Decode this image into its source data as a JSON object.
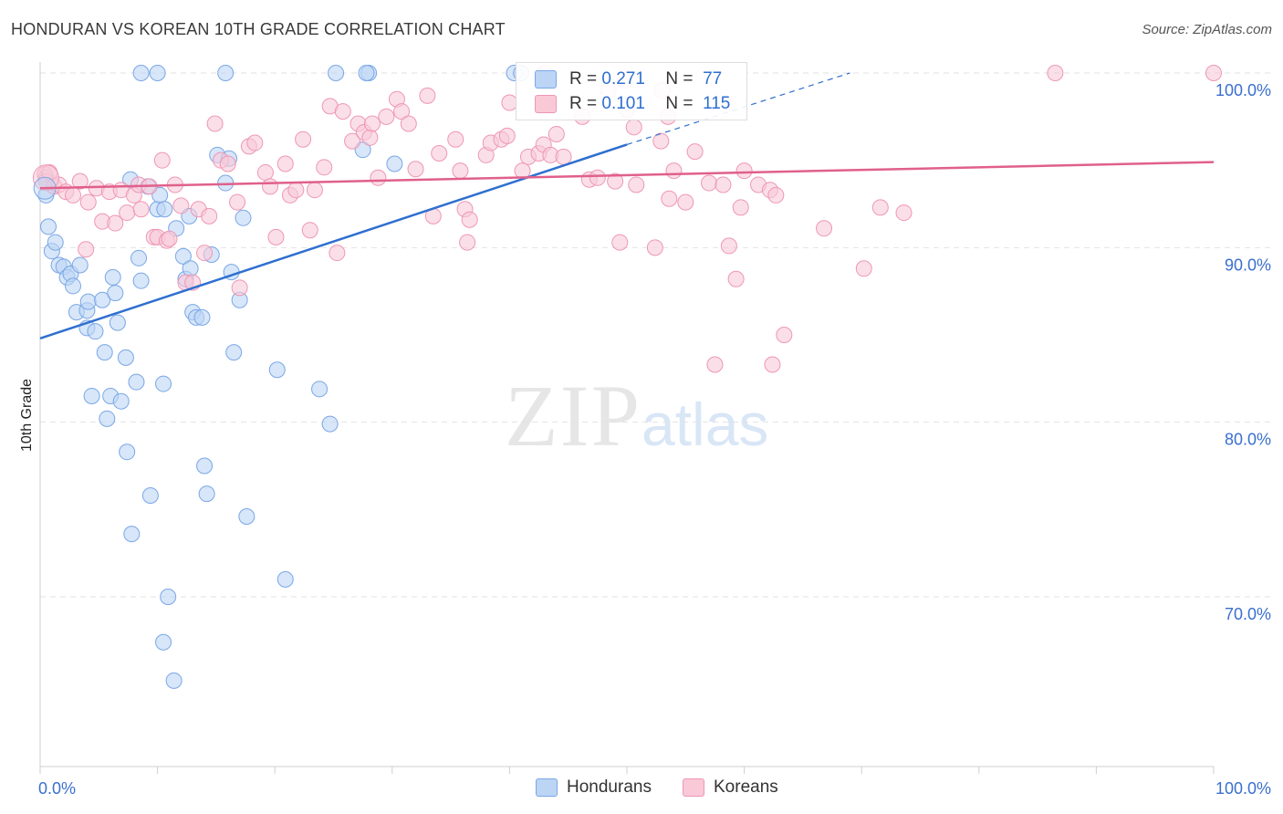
{
  "title": "HONDURAN VS KOREAN 10TH GRADE CORRELATION CHART",
  "source": "Source: ZipAtlas.com",
  "watermark": {
    "zip": "ZIP",
    "atlas": "atlas"
  },
  "legend_top": {
    "r_label": "R =",
    "n_label": "N =",
    "rows": [
      {
        "r": "0.271",
        "n": "77"
      },
      {
        "r": "0.101",
        "n": "115"
      }
    ]
  },
  "legend_bottom": [
    "Hondurans",
    "Koreans"
  ],
  "colors": {
    "blue": "#2f6fd0",
    "pink": "#e0608a",
    "blue_fill": "#bcd5f5",
    "pink_fill": "#f9c9d8"
  },
  "chart_data": {
    "type": "scatter",
    "title": "HONDURAN VS KOREAN 10TH GRADE CORRELATION CHART",
    "xlabel": "",
    "ylabel": "10th Grade",
    "xlim": [
      0,
      100
    ],
    "ylim": [
      60.5,
      101
    ],
    "x_tick_labels": [
      "0.0%",
      "100.0%"
    ],
    "y_ticks": [
      70,
      80,
      90,
      100
    ],
    "y_tick_labels": [
      "70.0%",
      "80.0%",
      "90.0%",
      "100.0%"
    ],
    "grid": true,
    "legend": "top-center",
    "series": [
      {
        "name": "Hondurans",
        "color": "#2f6fd0",
        "trend": {
          "x0": 0,
          "y0": 84.8,
          "x1": 50,
          "y1": 95.9,
          "dashed_to_x": 69,
          "dashed_to_y": 100
        },
        "points": [
          [
            0.5,
            94
          ],
          [
            0.5,
            93
          ],
          [
            0.7,
            91.2
          ],
          [
            1,
            89.8
          ],
          [
            1.3,
            90.3
          ],
          [
            1.6,
            89
          ],
          [
            2,
            88.9
          ],
          [
            2.3,
            88.3
          ],
          [
            2.6,
            88.5
          ],
          [
            2.8,
            87.8
          ],
          [
            3.4,
            89
          ],
          [
            3.1,
            86.3
          ],
          [
            4,
            86.4
          ],
          [
            4,
            85.4
          ],
          [
            4.1,
            86.9
          ],
          [
            4.7,
            85.2
          ],
          [
            5.3,
            87
          ],
          [
            5.5,
            84
          ],
          [
            6.2,
            88.3
          ],
          [
            6.4,
            87.4
          ],
          [
            6.6,
            85.7
          ],
          [
            7.3,
            83.7
          ],
          [
            7.7,
            93.9
          ],
          [
            8.2,
            82.3
          ],
          [
            8.4,
            89.4
          ],
          [
            8.6,
            88.1
          ],
          [
            9.2,
            93.5
          ],
          [
            10,
            92.2
          ],
          [
            10.2,
            93
          ],
          [
            10.6,
            92.2
          ],
          [
            10.5,
            82.2
          ],
          [
            11.6,
            91.1
          ],
          [
            12.2,
            89.5
          ],
          [
            12.4,
            88.2
          ],
          [
            12.7,
            91.8
          ],
          [
            12.8,
            88.8
          ],
          [
            13,
            86.3
          ],
          [
            13.3,
            86
          ],
          [
            13.8,
            86
          ],
          [
            14.6,
            89.6
          ],
          [
            15.1,
            95.3
          ],
          [
            15.8,
            93.7
          ],
          [
            16.1,
            95.1
          ],
          [
            16.3,
            88.6
          ],
          [
            16.5,
            84
          ],
          [
            17,
            87
          ],
          [
            17.3,
            91.7
          ],
          [
            4.4,
            81.5
          ],
          [
            5.7,
            80.2
          ],
          [
            6,
            81.5
          ],
          [
            6.9,
            81.2
          ],
          [
            7.4,
            78.3
          ],
          [
            7.8,
            73.6
          ],
          [
            9.4,
            75.8
          ],
          [
            10.9,
            70
          ],
          [
            10.5,
            67.4
          ],
          [
            11.4,
            65.2
          ],
          [
            14,
            77.5
          ],
          [
            14.2,
            75.9
          ],
          [
            17.6,
            74.6
          ],
          [
            20.2,
            83
          ],
          [
            20.9,
            71
          ],
          [
            23.8,
            81.9
          ],
          [
            24.7,
            79.9
          ],
          [
            27.5,
            95.6
          ],
          [
            30.2,
            94.8
          ],
          [
            8.6,
            100
          ],
          [
            10,
            100
          ],
          [
            15.8,
            100
          ],
          [
            25.2,
            100
          ],
          [
            28,
            100
          ],
          [
            40.4,
            100
          ],
          [
            41,
            100
          ],
          [
            27.8,
            100
          ]
        ]
      },
      {
        "name": "Koreans",
        "color": "#e0608a",
        "trend": {
          "x0": 0,
          "y0": 93.4,
          "x1": 100,
          "y1": 94.9
        },
        "points": [
          [
            0.4,
            94.2
          ],
          [
            0.5,
            93.8
          ],
          [
            0.8,
            94.3
          ],
          [
            1.2,
            93.5
          ],
          [
            1.6,
            93.6
          ],
          [
            2.2,
            93.2
          ],
          [
            2.8,
            93
          ],
          [
            3.4,
            93.8
          ],
          [
            3.9,
            89.9
          ],
          [
            4.1,
            92.6
          ],
          [
            4.8,
            93.4
          ],
          [
            5.3,
            91.5
          ],
          [
            5.9,
            93.2
          ],
          [
            6.4,
            91.4
          ],
          [
            6.9,
            93.3
          ],
          [
            7.4,
            92
          ],
          [
            8,
            93
          ],
          [
            8.4,
            93.6
          ],
          [
            8.6,
            92.2
          ],
          [
            9.3,
            93.5
          ],
          [
            9.7,
            90.6
          ],
          [
            10,
            90.6
          ],
          [
            10.4,
            95
          ],
          [
            10.8,
            90.4
          ],
          [
            11,
            90.5
          ],
          [
            11.5,
            93.6
          ],
          [
            12,
            92.4
          ],
          [
            12.4,
            88
          ],
          [
            13,
            88
          ],
          [
            13.5,
            92.2
          ],
          [
            14,
            89.7
          ],
          [
            14.4,
            91.8
          ],
          [
            14.9,
            97.1
          ],
          [
            15.4,
            95
          ],
          [
            16,
            94.8
          ],
          [
            16.8,
            92.6
          ],
          [
            17,
            87.7
          ],
          [
            17.8,
            95.8
          ],
          [
            18.3,
            96
          ],
          [
            19.2,
            94.3
          ],
          [
            19.6,
            93.5
          ],
          [
            20.1,
            90.6
          ],
          [
            20.9,
            94.8
          ],
          [
            21.3,
            93
          ],
          [
            21.8,
            93.3
          ],
          [
            22.4,
            96.2
          ],
          [
            23,
            91
          ],
          [
            23.4,
            93.3
          ],
          [
            24.2,
            94.6
          ],
          [
            24.7,
            98.1
          ],
          [
            25.3,
            89.7
          ],
          [
            25.8,
            97.8
          ],
          [
            26.6,
            96.1
          ],
          [
            27.1,
            97.1
          ],
          [
            27.6,
            96.6
          ],
          [
            28.1,
            96.3
          ],
          [
            28.3,
            97.1
          ],
          [
            28.8,
            94
          ],
          [
            29.5,
            97.5
          ],
          [
            30.4,
            98.5
          ],
          [
            30.8,
            97.8
          ],
          [
            31.4,
            97.1
          ],
          [
            32,
            94.5
          ],
          [
            33,
            98.7
          ],
          [
            33.5,
            91.8
          ],
          [
            34,
            95.4
          ],
          [
            35.4,
            96.2
          ],
          [
            35.8,
            94.4
          ],
          [
            36.2,
            92.2
          ],
          [
            36.6,
            91.6
          ],
          [
            36.4,
            90.3
          ],
          [
            38,
            95.3
          ],
          [
            38.4,
            96
          ],
          [
            39.3,
            96.2
          ],
          [
            39.8,
            96.4
          ],
          [
            40,
            98.3
          ],
          [
            41.1,
            94.4
          ],
          [
            41.6,
            95.2
          ],
          [
            42.5,
            95.4
          ],
          [
            42.9,
            95.9
          ],
          [
            43.5,
            95.3
          ],
          [
            44,
            96.5
          ],
          [
            44.6,
            95.2
          ],
          [
            46.2,
            97.5
          ],
          [
            46.8,
            93.9
          ],
          [
            47.5,
            94
          ],
          [
            48.4,
            99
          ],
          [
            49,
            93.8
          ],
          [
            49.4,
            90.3
          ],
          [
            50,
            97.9
          ],
          [
            50.6,
            96.9
          ],
          [
            50.8,
            93.6
          ],
          [
            52.4,
            90
          ],
          [
            52.9,
            96.1
          ],
          [
            53.5,
            97.5
          ],
          [
            53.6,
            92.8
          ],
          [
            54,
            94.4
          ],
          [
            55,
            92.6
          ],
          [
            55.8,
            95.5
          ],
          [
            57,
            93.7
          ],
          [
            58.2,
            93.6
          ],
          [
            58.7,
            90.1
          ],
          [
            59.3,
            88.2
          ],
          [
            59.7,
            92.3
          ],
          [
            60,
            94.4
          ],
          [
            61.2,
            93.6
          ],
          [
            62.2,
            93.3
          ],
          [
            62.7,
            93
          ],
          [
            62.4,
            83.3
          ],
          [
            63.4,
            85
          ],
          [
            66.8,
            91.1
          ],
          [
            70.2,
            88.8
          ],
          [
            71.6,
            92.3
          ],
          [
            73.6,
            92
          ],
          [
            57.5,
            83.3
          ],
          [
            86.5,
            100
          ],
          [
            100,
            100
          ],
          [
            43,
            100
          ],
          [
            53,
            99
          ],
          [
            49.8,
            99.6
          ]
        ]
      }
    ]
  }
}
